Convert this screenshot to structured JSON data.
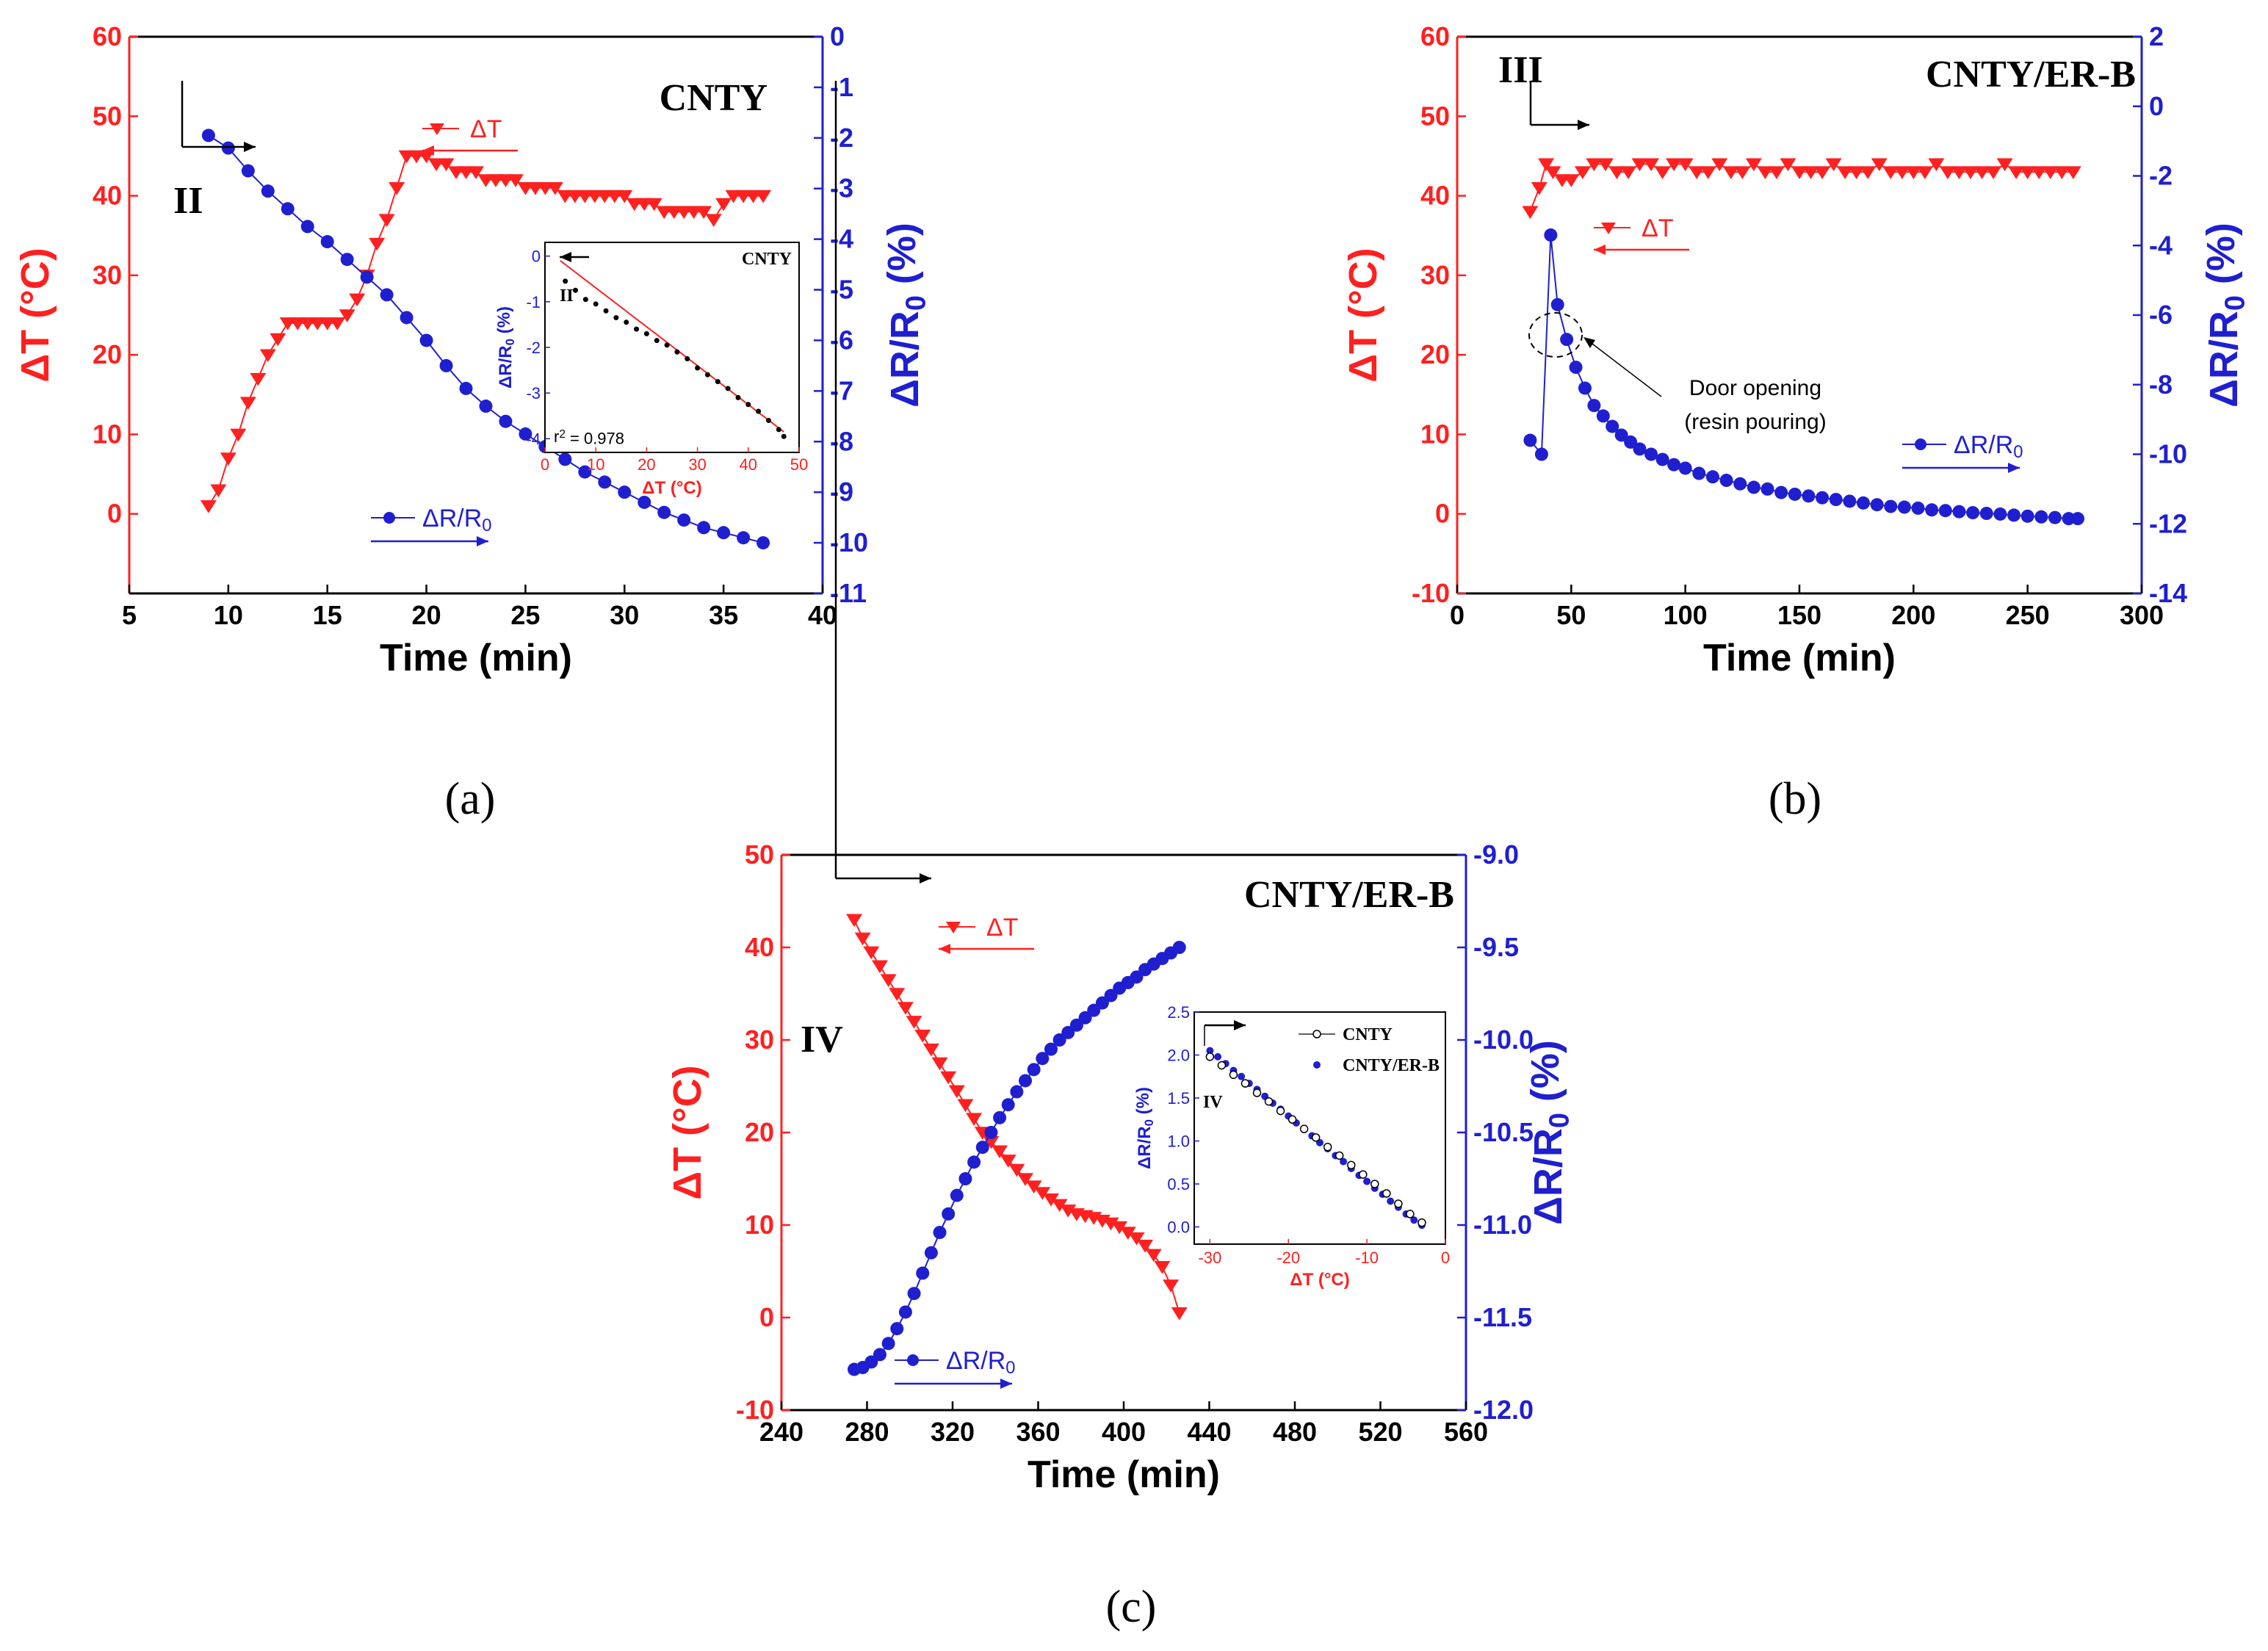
{
  "chart_data": [
    {
      "type": "line",
      "panel": "(a)",
      "title": "CNTY",
      "phase_label": "II",
      "xlabel": "Time (min)",
      "ylabel_left": "ΔT (°C)",
      "ylabel_right": "ΔR/R0 (%)",
      "xlim": [
        5,
        40
      ],
      "xticks": [
        5,
        10,
        15,
        20,
        25,
        30,
        35,
        40
      ],
      "ylim_left": [
        -10,
        60
      ],
      "yticks_left": [
        0,
        10,
        20,
        30,
        40,
        50,
        60
      ],
      "ylim_right": [
        -11,
        0
      ],
      "yticks_right": [
        -11,
        -10,
        -9,
        -8,
        -7,
        -6,
        -5,
        -4,
        -3,
        -2,
        -1,
        0
      ],
      "legend": [
        "ΔT",
        "ΔR/R0"
      ],
      "series": [
        {
          "name": "ΔT",
          "axis": "left",
          "color": "#ff2020",
          "marker": "triangle-down",
          "x": [
            9.0,
            9.5,
            10.0,
            10.5,
            11.0,
            11.5,
            12.0,
            12.5,
            13.0,
            13.5,
            14.0,
            14.5,
            15.0,
            15.5,
            16.0,
            16.5,
            17.0,
            17.5,
            18.0,
            18.5,
            19.0,
            19.5,
            20.0,
            20.5,
            21.0,
            21.5,
            22.0,
            22.5,
            23.0,
            23.5,
            24.0,
            24.5,
            25.0,
            25.5,
            26.0,
            26.5,
            27.0,
            27.5,
            28.0,
            28.5,
            29.0,
            29.5,
            30.0,
            30.5,
            31.0,
            31.5,
            32.0,
            32.5,
            33.0,
            33.5,
            34.0,
            34.5,
            35.0,
            35.5,
            36.0,
            36.5,
            37.0
          ],
          "y": [
            1,
            3,
            7,
            10,
            14,
            17,
            20,
            22,
            24,
            24,
            24,
            24,
            24,
            24,
            25,
            27,
            30,
            34,
            37,
            41,
            45,
            45,
            45,
            44,
            44,
            43,
            43,
            43,
            42,
            42,
            42,
            42,
            41,
            41,
            41,
            41,
            40,
            40,
            40,
            40,
            40,
            40,
            40,
            39,
            39,
            39,
            38,
            38,
            38,
            38,
            38,
            37,
            39,
            40,
            40,
            40,
            40
          ]
        },
        {
          "name": "ΔR/R0",
          "axis": "right",
          "color": "#1f1fd0",
          "marker": "circle",
          "x": [
            9.0,
            10.0,
            11.0,
            12.0,
            13.0,
            14.0,
            15.0,
            16.0,
            17.0,
            18.0,
            19.0,
            20.0,
            21.0,
            22.0,
            23.0,
            24.0,
            25.0,
            26.0,
            27.0,
            28.0,
            29.0,
            30.0,
            31.0,
            32.0,
            33.0,
            34.0,
            35.0,
            36.0,
            37.0
          ],
          "y": [
            -1.95,
            -2.2,
            -2.65,
            -3.05,
            -3.4,
            -3.75,
            -4.05,
            -4.4,
            -4.75,
            -5.1,
            -5.55,
            -6.0,
            -6.5,
            -6.95,
            -7.3,
            -7.6,
            -7.85,
            -8.1,
            -8.35,
            -8.6,
            -8.8,
            -9.0,
            -9.2,
            -9.4,
            -9.55,
            -9.7,
            -9.8,
            -9.9,
            -10.0
          ]
        }
      ],
      "inset": {
        "title": "CNTY",
        "phase_label": "II",
        "xlabel": "ΔT (°C)",
        "ylabel": "ΔR/R0 (%)",
        "xlim": [
          0,
          50
        ],
        "xticks": [
          0,
          10,
          20,
          30,
          40,
          50
        ],
        "ylim": [
          -4.3,
          0.3
        ],
        "yticks": [
          -4,
          -3,
          -2,
          -1,
          0
        ],
        "annotation": "r2 = 0.978",
        "points_x": [
          4,
          6,
          8,
          10,
          12,
          14,
          16,
          18,
          20,
          22,
          24,
          26,
          28,
          30,
          32,
          34,
          36,
          38,
          40,
          42,
          44,
          46,
          47
        ],
        "points_y": [
          -0.55,
          -0.75,
          -0.95,
          -1.05,
          -1.2,
          -1.35,
          -1.45,
          -1.6,
          -1.7,
          -1.85,
          -1.95,
          -2.1,
          -2.25,
          -2.45,
          -2.6,
          -2.75,
          -2.9,
          -3.1,
          -3.25,
          -3.4,
          -3.6,
          -3.8,
          -3.95
        ],
        "fit_x": [
          3,
          47
        ],
        "fit_y": [
          -0.1,
          -3.85
        ]
      }
    },
    {
      "type": "line",
      "panel": "(b)",
      "title": "CNTY/ER-B",
      "phase_label": "III",
      "xlabel": "Time (min)",
      "ylabel_left": "ΔT (°C)",
      "ylabel_right": "ΔR/R0 (%)",
      "xlim": [
        0,
        300
      ],
      "xticks": [
        0,
        50,
        100,
        150,
        200,
        250,
        300
      ],
      "ylim_left": [
        -10,
        60
      ],
      "yticks_left": [
        -10,
        0,
        10,
        20,
        30,
        40,
        50,
        60
      ],
      "ylim_right": [
        -14,
        2
      ],
      "yticks_right": [
        -14,
        -12,
        -10,
        -8,
        -6,
        -4,
        -2,
        0,
        2
      ],
      "legend": [
        "ΔT",
        "ΔR/R0"
      ],
      "annotation": [
        "Door opening",
        "(resin pouring)"
      ],
      "series": [
        {
          "name": "ΔT",
          "axis": "left",
          "color": "#ff2020",
          "marker": "triangle-down",
          "x": [
            32,
            36,
            39,
            42,
            46,
            50,
            55,
            60,
            65,
            70,
            75,
            80,
            85,
            90,
            95,
            100,
            105,
            110,
            115,
            120,
            125,
            130,
            135,
            140,
            145,
            150,
            155,
            160,
            165,
            170,
            175,
            180,
            185,
            190,
            195,
            200,
            205,
            210,
            215,
            220,
            225,
            230,
            235,
            240,
            245,
            250,
            255,
            260,
            265,
            270
          ],
          "y": [
            38,
            41,
            44,
            43,
            42,
            42,
            43,
            44,
            44,
            43,
            43,
            44,
            44,
            43,
            44,
            44,
            43,
            43,
            44,
            43,
            43,
            44,
            43,
            43,
            44,
            43,
            43,
            43,
            44,
            43,
            43,
            43,
            44,
            43,
            43,
            43,
            43,
            44,
            43,
            43,
            43,
            43,
            43,
            44,
            43,
            43,
            43,
            43,
            43,
            43
          ]
        },
        {
          "name": "ΔR/R0",
          "axis": "right",
          "color": "#1f1fd0",
          "marker": "circle",
          "x": [
            32,
            37,
            41,
            44,
            48,
            52,
            56,
            60,
            64,
            68,
            72,
            76,
            80,
            85,
            90,
            95,
            100,
            106,
            112,
            118,
            124,
            130,
            136,
            142,
            148,
            154,
            160,
            166,
            172,
            178,
            184,
            190,
            196,
            202,
            208,
            214,
            220,
            226,
            232,
            238,
            244,
            250,
            256,
            262,
            268,
            272
          ],
          "y": [
            -9.6,
            -10.0,
            -3.7,
            -5.7,
            -6.7,
            -7.5,
            -8.1,
            -8.6,
            -8.9,
            -9.2,
            -9.45,
            -9.65,
            -9.85,
            -10.0,
            -10.15,
            -10.3,
            -10.4,
            -10.55,
            -10.65,
            -10.75,
            -10.85,
            -10.95,
            -11.0,
            -11.1,
            -11.15,
            -11.2,
            -11.25,
            -11.3,
            -11.35,
            -11.4,
            -11.45,
            -11.5,
            -11.52,
            -11.55,
            -11.6,
            -11.62,
            -11.65,
            -11.68,
            -11.7,
            -11.72,
            -11.75,
            -11.78,
            -11.8,
            -11.82,
            -11.85,
            -11.85
          ]
        }
      ]
    },
    {
      "type": "line",
      "panel": "(c)",
      "title": "CNTY/ER-B",
      "phase_label": "IV",
      "xlabel": "Time (min)",
      "ylabel_left": "ΔT (°C)",
      "ylabel_right": "ΔR/R0 (%)",
      "xlim": [
        240,
        560
      ],
      "xticks": [
        240,
        280,
        320,
        360,
        400,
        440,
        480,
        520,
        560
      ],
      "ylim_left": [
        -10,
        50
      ],
      "yticks_left": [
        -10,
        0,
        10,
        20,
        30,
        40,
        50
      ],
      "ylim_right": [
        -12.0,
        -9.0
      ],
      "yticks_right": [
        "-12.0",
        "-11.5",
        "-11.0",
        "-10.5",
        "-10.0",
        "-9.5",
        "-9.0"
      ],
      "legend": [
        "ΔT",
        "ΔR/R0"
      ],
      "series": [
        {
          "name": "ΔT",
          "axis": "left",
          "color": "#ff2020",
          "marker": "triangle-down",
          "x": [
            274,
            278,
            282,
            286,
            290,
            294,
            298,
            302,
            306,
            310,
            314,
            318,
            322,
            326,
            330,
            334,
            338,
            342,
            346,
            350,
            354,
            358,
            362,
            366,
            370,
            374,
            378,
            382,
            386,
            390,
            394,
            398,
            402,
            406,
            410,
            414,
            418,
            422,
            426
          ],
          "y": [
            43,
            41,
            39.5,
            38,
            36.5,
            35,
            33.5,
            32,
            30.5,
            29,
            27.5,
            26,
            24.5,
            23,
            21.5,
            20,
            19,
            18,
            17,
            16,
            15,
            14.2,
            13.5,
            12.8,
            12.2,
            11.6,
            11.2,
            11,
            10.8,
            10.5,
            10.2,
            9.8,
            9.2,
            8.6,
            7.8,
            6.8,
            5.5,
            3.5,
            0.5
          ]
        },
        {
          "name": "ΔR/R0",
          "axis": "right",
          "color": "#1f1fd0",
          "marker": "circle",
          "x": [
            274,
            278,
            282,
            286,
            290,
            294,
            298,
            302,
            306,
            310,
            314,
            318,
            322,
            326,
            330,
            334,
            338,
            342,
            346,
            350,
            354,
            358,
            362,
            366,
            370,
            374,
            378,
            382,
            386,
            390,
            394,
            398,
            402,
            406,
            410,
            414,
            418,
            422,
            426
          ],
          "y": [
            -11.78,
            -11.77,
            -11.74,
            -11.7,
            -11.64,
            -11.56,
            -11.47,
            -11.37,
            -11.26,
            -11.15,
            -11.04,
            -10.94,
            -10.84,
            -10.75,
            -10.66,
            -10.58,
            -10.5,
            -10.42,
            -10.35,
            -10.28,
            -10.22,
            -10.16,
            -10.1,
            -10.05,
            -10.0,
            -9.96,
            -9.92,
            -9.88,
            -9.84,
            -9.8,
            -9.76,
            -9.72,
            -9.69,
            -9.66,
            -9.62,
            -9.59,
            -9.56,
            -9.53,
            -9.5
          ]
        }
      ],
      "inset": {
        "phase_label": "IV",
        "xlabel": "ΔT (°C)",
        "ylabel": "ΔR/R0 (%)",
        "xlim": [
          -32,
          0
        ],
        "xticks": [
          -30,
          -20,
          -10,
          0
        ],
        "ylim": [
          -0.2,
          2.5
        ],
        "yticks": [
          "0.0",
          "0.5",
          "1.0",
          "1.5",
          "2.0",
          "2.5"
        ],
        "legend": [
          "CNTY",
          "CNTY/ER-B"
        ],
        "series_cnty_x": [
          -30,
          -28.5,
          -27,
          -25.5,
          -24,
          -22.5,
          -21,
          -19.5,
          -18,
          -16.5,
          -15,
          -13.5,
          -12,
          -10.5,
          -9,
          -7.5,
          -6,
          -4.5,
          -3
        ],
        "series_cnty_y": [
          1.98,
          1.88,
          1.77,
          1.67,
          1.56,
          1.46,
          1.35,
          1.25,
          1.14,
          1.04,
          0.93,
          0.83,
          0.72,
          0.61,
          0.5,
          0.39,
          0.27,
          0.15,
          0.05
        ],
        "series_erb_x": [
          -30,
          -29,
          -28,
          -27,
          -26,
          -25,
          -24,
          -23,
          -22,
          -21,
          -20,
          -19,
          -18,
          -17,
          -16,
          -15,
          -14,
          -13,
          -12,
          -11,
          -10,
          -9,
          -8,
          -7,
          -6,
          -5,
          -4,
          -3
        ],
        "series_erb_y": [
          2.05,
          1.98,
          1.9,
          1.82,
          1.75,
          1.67,
          1.6,
          1.52,
          1.44,
          1.37,
          1.29,
          1.21,
          1.14,
          1.06,
          0.98,
          0.91,
          0.83,
          0.76,
          0.68,
          0.6,
          0.53,
          0.45,
          0.38,
          0.3,
          0.23,
          0.15,
          0.08,
          0.02
        ]
      }
    }
  ],
  "captions": [
    "(a)",
    "(b)",
    "(c)"
  ]
}
